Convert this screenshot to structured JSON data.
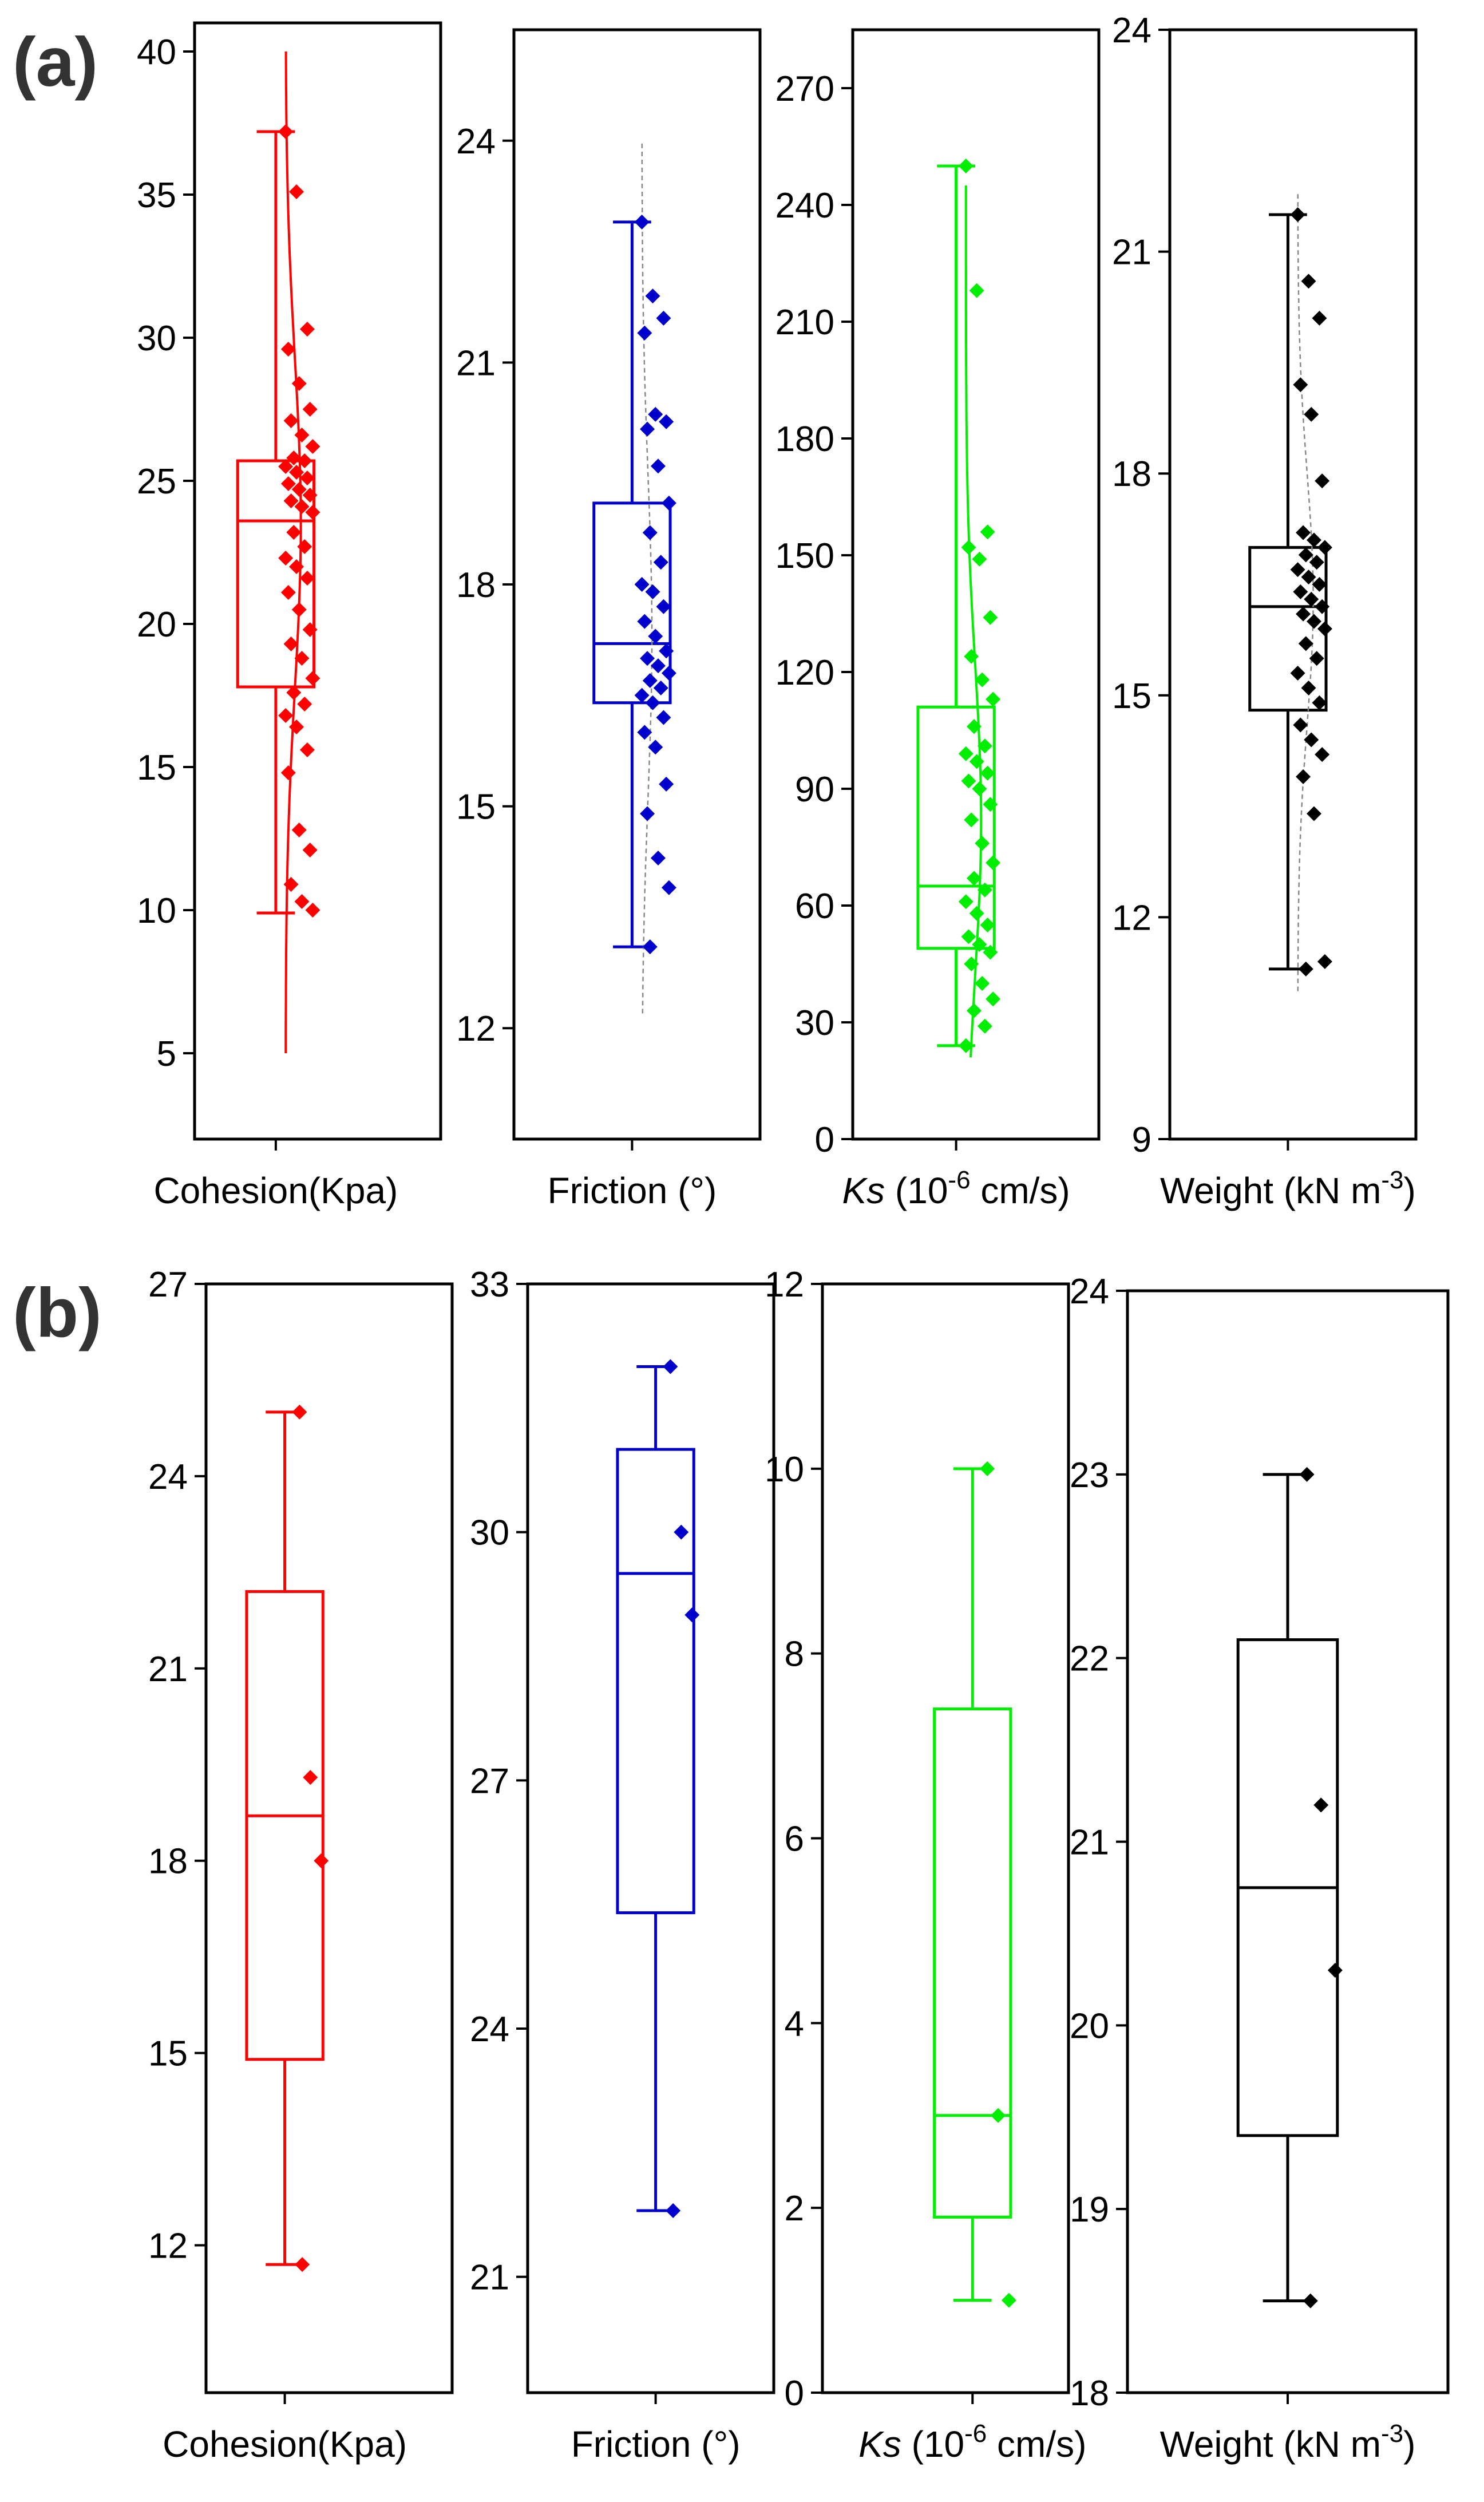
{
  "figure": {
    "panel_labels": [
      "(a)",
      "(b)"
    ]
  },
  "colors": {
    "cohesion": "#ff0000",
    "friction": "#0000cc",
    "ks": "#00ee00",
    "weight": "#000000"
  },
  "chart_data": [
    {
      "panel": "(a)",
      "type": "box",
      "title": "Cohesion",
      "xlabel": "Cohesion(Kpa)",
      "ylim": [
        2,
        41
      ],
      "yticks": [
        5,
        10,
        15,
        20,
        25,
        30,
        35,
        40
      ],
      "color_key": "cohesion",
      "box": {
        "min": 9.9,
        "q1": 17.8,
        "median": 23.6,
        "q3": 25.7,
        "max": 37.2
      },
      "points": [
        37.2,
        35.1,
        30.3,
        29.6,
        28.4,
        27.5,
        27.1,
        26.6,
        26.2,
        25.8,
        25.7,
        25.5,
        25.3,
        25.1,
        24.9,
        24.7,
        24.5,
        24.3,
        24.1,
        23.9,
        23.2,
        22.7,
        22.3,
        22.0,
        21.6,
        21.1,
        20.5,
        19.8,
        19.3,
        18.8,
        18.1,
        17.6,
        17.2,
        16.8,
        16.4,
        15.6,
        14.8,
        12.8,
        12.1,
        10.9,
        10.3,
        10.0
      ],
      "curve": {
        "mean": 23.5,
        "sd": 5.8,
        "peak": 26.5,
        "yrange": [
          5,
          40
        ],
        "dashed": false
      }
    },
    {
      "panel": "(a)",
      "type": "box",
      "title": "Friction",
      "xlabel": "Friction (°)",
      "ylim": [
        10.5,
        25.5
      ],
      "yticks": [
        12,
        15,
        18,
        21,
        24
      ],
      "color_key": "friction",
      "box": {
        "min": 13.1,
        "q1": 16.4,
        "median": 17.2,
        "q3": 19.1,
        "max": 22.9
      },
      "points": [
        22.9,
        21.9,
        21.6,
        21.4,
        20.3,
        20.2,
        20.1,
        19.6,
        19.1,
        18.7,
        18.3,
        18.0,
        17.9,
        17.7,
        17.5,
        17.3,
        17.1,
        17.0,
        16.9,
        16.8,
        16.7,
        16.6,
        16.5,
        16.4,
        16.2,
        16.0,
        15.8,
        15.3,
        14.9,
        14.3,
        13.9,
        13.1
      ],
      "curve": {
        "mean": 17.3,
        "sd": 2.2,
        "peak": 17.5,
        "yrange": [
          12.2,
          24.0
        ],
        "dashed": true
      }
    },
    {
      "panel": "(a)",
      "type": "box",
      "title": "Ks",
      "xlabel": "Ks (10-6 cm/s)",
      "xlabel_parts": {
        "italic": "Ks",
        "base": " (10",
        "sup": "-6",
        "rest": " cm/s)"
      },
      "ylim": [
        0,
        285
      ],
      "yticks": [
        0,
        30,
        60,
        90,
        120,
        150,
        180,
        210,
        240,
        270
      ],
      "color_key": "ks",
      "box": {
        "min": 24,
        "q1": 49,
        "median": 65,
        "q3": 111,
        "max": 250
      },
      "points": [
        250,
        218,
        156,
        152,
        149,
        134,
        124,
        118,
        113,
        106,
        101,
        99,
        97,
        94,
        92,
        90,
        86,
        82,
        76,
        71,
        67,
        64,
        61,
        58,
        55,
        52,
        50,
        48,
        45,
        40,
        36,
        33,
        29,
        24
      ],
      "curve": {
        "mean": 82,
        "sd": 40,
        "peak": 26.5,
        "yrange": [
          21,
          245
        ],
        "dashed": false
      }
    },
    {
      "panel": "(a)",
      "type": "box",
      "title": "Weight",
      "xlabel": "Weight (kN m-3)",
      "xlabel_parts": {
        "italic": "",
        "base": "Weight (kN m",
        "sup": "-3",
        "rest": ")"
      },
      "ylim": [
        9,
        24
      ],
      "yticks": [
        9,
        12,
        15,
        18,
        21,
        24
      ],
      "color_key": "weight",
      "box": {
        "min": 11.3,
        "q1": 14.8,
        "median": 16.2,
        "q3": 17.0,
        "max": 21.5
      },
      "points": [
        21.5,
        20.6,
        20.1,
        19.2,
        18.8,
        17.9,
        17.2,
        17.1,
        17.0,
        16.9,
        16.8,
        16.7,
        16.6,
        16.5,
        16.4,
        16.3,
        16.2,
        16.1,
        16.0,
        15.9,
        15.7,
        15.5,
        15.3,
        15.1,
        14.9,
        14.6,
        14.4,
        14.2,
        13.9,
        13.4,
        11.4,
        11.3
      ],
      "curve": {
        "mean": 16.3,
        "sd": 1.7,
        "peak": 27,
        "yrange": [
          11.0,
          21.8
        ],
        "dashed": true
      }
    },
    {
      "panel": "(b)",
      "type": "box",
      "title": "Cohesion",
      "xlabel": "Cohesion(Kpa)",
      "ylim": [
        9.7,
        27
      ],
      "yticks": [
        12,
        15,
        18,
        21,
        24,
        27
      ],
      "color_key": "cohesion",
      "box": {
        "min": 11.7,
        "q1": 14.9,
        "median": 18.7,
        "q3": 22.2,
        "max": 25.0
      },
      "points": [
        25.0,
        19.3,
        18.0,
        11.7
      ]
    },
    {
      "panel": "(b)",
      "type": "box",
      "title": "Friction",
      "xlabel": "Friction (°)",
      "ylim": [
        19.6,
        33
      ],
      "yticks": [
        21,
        24,
        27,
        30,
        33
      ],
      "color_key": "friction",
      "box": {
        "min": 21.8,
        "q1": 25.4,
        "median": 29.5,
        "q3": 31.0,
        "max": 32.0
      },
      "points": [
        32.0,
        30.0,
        29.0,
        21.8
      ]
    },
    {
      "panel": "(b)",
      "type": "box",
      "title": "Ks",
      "xlabel": "Ks (10-6 cm/s)",
      "xlabel_parts": {
        "italic": "Ks",
        "base": " (10",
        "sup": "-6",
        "rest": " cm/s)"
      },
      "ylim": [
        0,
        12
      ],
      "yticks": [
        0,
        2,
        4,
        6,
        8,
        10,
        12
      ],
      "color_key": "ks",
      "box": {
        "min": 1.0,
        "q1": 1.9,
        "median": 3.0,
        "q3": 7.4,
        "max": 10.0
      },
      "points": [
        10.0,
        3.0,
        1.0
      ]
    },
    {
      "panel": "(b)",
      "type": "box",
      "title": "Weight",
      "xlabel": "Weight (kN m-3)",
      "xlabel_parts": {
        "italic": "",
        "base": "Weight (kN m",
        "sup": "-3",
        "rest": ")"
      },
      "ylim": [
        18,
        24
      ],
      "yticks": [
        18,
        19,
        20,
        21,
        22,
        23,
        24
      ],
      "color_key": "weight",
      "box": {
        "min": 18.5,
        "q1": 19.4,
        "median": 20.75,
        "q3": 22.1,
        "max": 23.0
      },
      "points": [
        23.0,
        21.2,
        20.3,
        18.5
      ]
    }
  ]
}
